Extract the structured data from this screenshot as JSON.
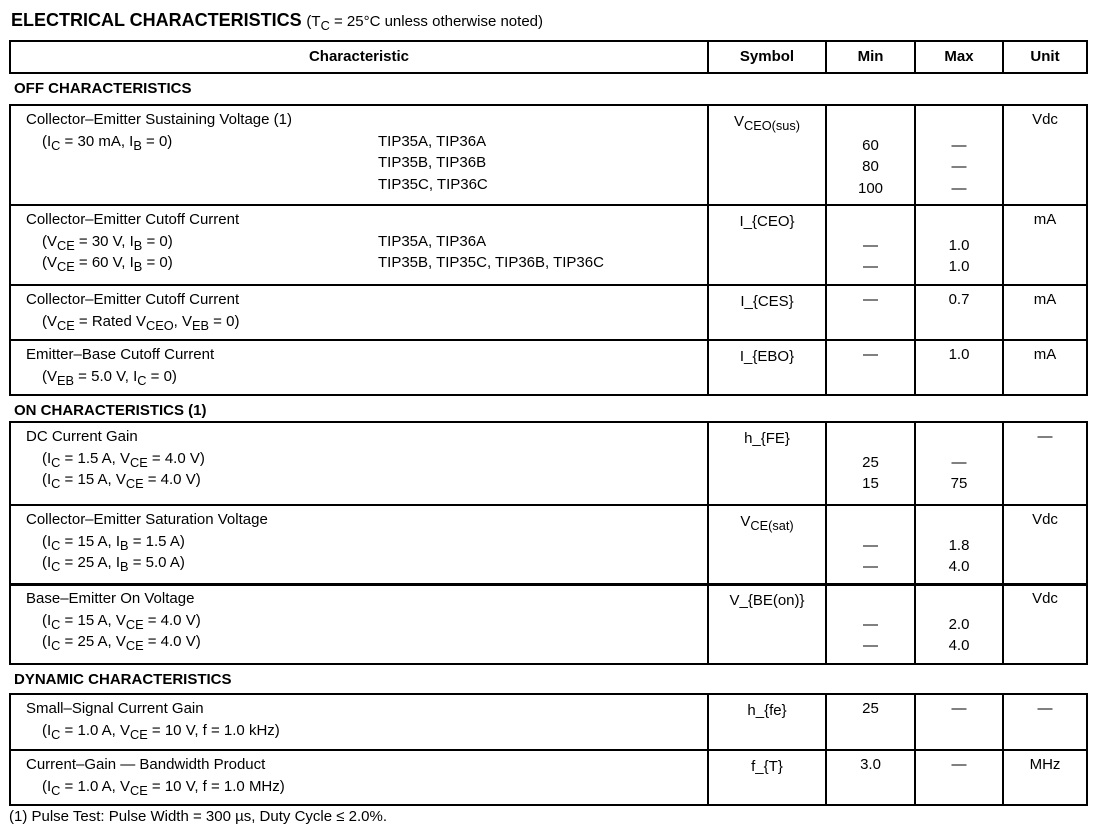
{
  "title": {
    "main": "ELECTRICAL CHARACTERISTICS",
    "note": "(T_{C} = 25°C unless otherwise noted)"
  },
  "header": [
    "Characteristic",
    "Symbol",
    "Min",
    "Max",
    "Unit"
  ],
  "sections": [
    {
      "label": "OFF CHARACTERISTICS",
      "rows": [
        {
          "name": "Collector–Emitter Sustaining Voltage (1)",
          "conds": [
            {
              "c": "(I_{C} = 30 mA, I_{B} = 0)",
              "d": "TIP35A, TIP36A"
            },
            {
              "c": "",
              "d": "TIP35B, TIP36B"
            },
            {
              "c": "",
              "d": "TIP35C, TIP36C"
            }
          ],
          "symbol": "V_{CEO(sus)}",
          "min": [
            "",
            "60",
            "80",
            "100"
          ],
          "max": [
            "",
            "—",
            "—",
            "—"
          ],
          "unit": [
            "Vdc"
          ]
        },
        {
          "name": "Collector–Emitter Cutoff Current",
          "conds": [
            {
              "c": "(V_{CE} = 30 V, I_{B} = 0)",
              "d": "TIP35A, TIP36A"
            },
            {
              "c": "(V_{CE} = 60 V, I_{B} = 0)",
              "d": "TIP35B, TIP35C, TIP36B, TIP36C"
            }
          ],
          "symbol": "I_{CEO}",
          "min": [
            "",
            "—",
            "—"
          ],
          "max": [
            "",
            "1.0",
            "1.0"
          ],
          "unit": [
            "mA"
          ]
        },
        {
          "name": "Collector–Emitter Cutoff Current",
          "conds": [
            {
              "c": "(V_{CE} = Rated V_{CEO}, V_{EB} = 0)",
              "d": ""
            }
          ],
          "symbol": "I_{CES}",
          "min": [
            "—"
          ],
          "max": [
            "0.7"
          ],
          "unit": [
            "mA"
          ]
        },
        {
          "name": "Emitter–Base Cutoff Current",
          "conds": [
            {
              "c": "(V_{EB} = 5.0 V, I_{C} = 0)",
              "d": ""
            }
          ],
          "symbol": "I_{EBO}",
          "min": [
            "—"
          ],
          "max": [
            "1.0"
          ],
          "unit": [
            "mA"
          ]
        }
      ]
    },
    {
      "label": "ON CHARACTERISTICS (1)",
      "rows": [
        {
          "name": "DC Current Gain",
          "conds": [
            {
              "c": "(I_{C} = 1.5 A, V_{CE} = 4.0 V)",
              "d": ""
            },
            {
              "c": "(I_{C} = 15 A, V_{CE} = 4.0 V)",
              "d": ""
            }
          ],
          "symbol": "h_{FE}",
          "min": [
            "",
            "25",
            "15"
          ],
          "max": [
            "",
            "—",
            "75"
          ],
          "unit": [
            "—"
          ]
        },
        {
          "name": "Collector–Emitter Saturation Voltage",
          "conds": [
            {
              "c": "(I_{C} = 15 A, I_{B} = 1.5 A)",
              "d": ""
            },
            {
              "c": "(I_{C} = 25 A, I_{B} = 5.0 A)",
              "d": ""
            }
          ],
          "symbol": "V_{CE(sat)}",
          "min": [
            "",
            "—",
            "—"
          ],
          "max": [
            "",
            "1.8",
            "4.0"
          ],
          "unit": [
            "Vdc"
          ]
        },
        {
          "name": "Base–Emitter On Voltage",
          "conds": [
            {
              "c": "(I_{C} = 15 A, V_{CE} = 4.0 V)",
              "d": ""
            },
            {
              "c": "(I_{C} = 25 A, V_{CE} = 4.0 V)",
              "d": ""
            }
          ],
          "symbol": "V_{BE(on)}",
          "min": [
            "",
            "—",
            "—"
          ],
          "max": [
            "",
            "2.0",
            "4.0"
          ],
          "unit": [
            "Vdc"
          ]
        }
      ]
    },
    {
      "label": "DYNAMIC CHARACTERISTICS",
      "rows": [
        {
          "name": "Small–Signal Current Gain",
          "conds": [
            {
              "c": "(I_{C} = 1.0 A, V_{CE} = 10 V, f = 1.0 kHz)",
              "d": ""
            }
          ],
          "symbol": "h_{fe}",
          "min": [
            "25"
          ],
          "max": [
            "—"
          ],
          "unit": [
            "—"
          ]
        },
        {
          "name": "Current–Gain — Bandwidth Product",
          "conds": [
            {
              "c": "(I_{C} = 1.0 A, V_{CE} = 10 V, f = 1.0 MHz)",
              "d": ""
            }
          ],
          "symbol": "f_{T}",
          "min": [
            "3.0"
          ],
          "max": [
            "—"
          ],
          "unit": [
            "MHz"
          ]
        }
      ]
    }
  ],
  "footnote": "(1)  Pulse Test: Pulse Width = 300 µs, Duty Cycle ≤ 2.0%."
}
